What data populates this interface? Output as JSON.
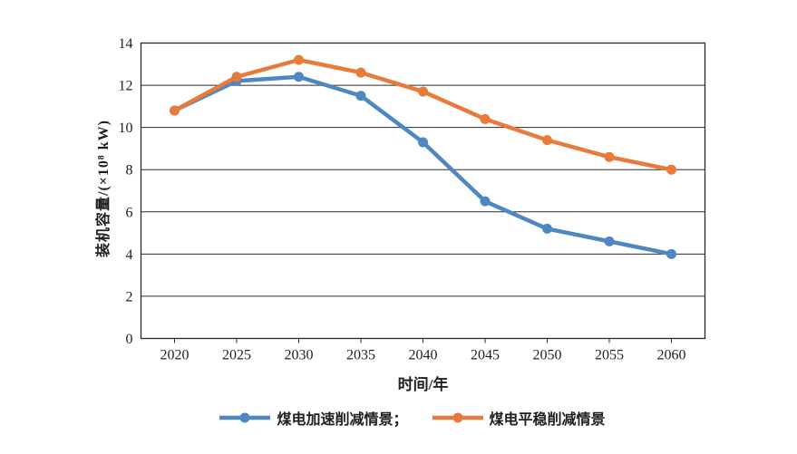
{
  "chart_data": {
    "type": "line",
    "title": "",
    "xlabel": "时间/年",
    "ylabel": "装机容量/(×10⁸ kW)",
    "x": [
      2020,
      2025,
      2030,
      2035,
      2040,
      2045,
      2050,
      2055,
      2060
    ],
    "ylim": [
      0,
      14
    ],
    "ytick_step": 2,
    "grid": "horizontal",
    "legend_position": "bottom-center",
    "series": [
      {
        "name": "煤电加速削减情景",
        "legend_label": "煤电加速削减情景；",
        "color": "#4F87C2",
        "values": [
          10.8,
          12.2,
          12.4,
          11.5,
          9.3,
          6.5,
          5.2,
          4.6,
          4.0
        ]
      },
      {
        "name": "煤电平稳削减情景",
        "legend_label": "煤电平稳削减情景",
        "color": "#E87A3B",
        "values": [
          10.8,
          12.4,
          13.2,
          12.6,
          11.7,
          10.4,
          9.4,
          8.6,
          8.0
        ]
      }
    ],
    "axis_color": "#2b2b2b",
    "text_color": "#1f1f1f"
  }
}
